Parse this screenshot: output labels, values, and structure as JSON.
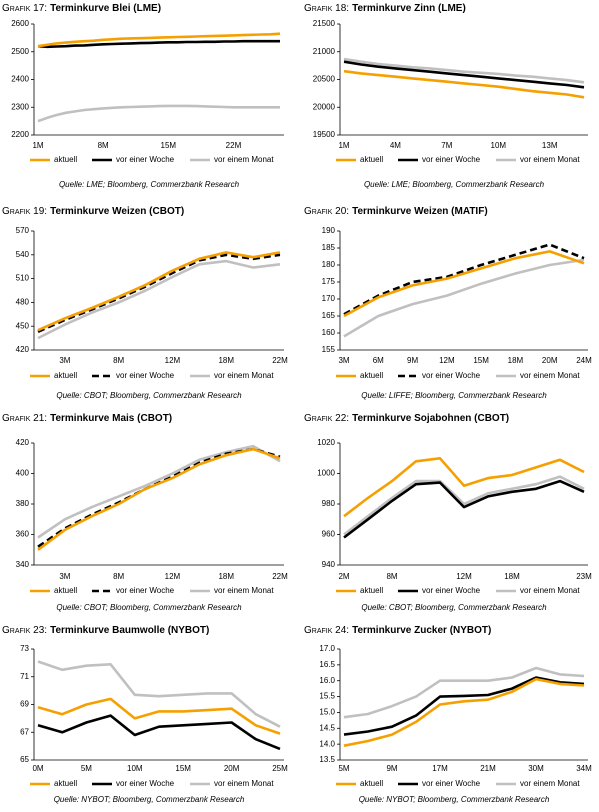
{
  "chart_data": [
    {
      "type": "line",
      "label": "Grafik 17:",
      "title": "Terminkurve Blei (LME)",
      "categories": [
        "1M",
        null,
        null,
        null,
        null,
        null,
        null,
        "8M",
        null,
        null,
        null,
        null,
        null,
        null,
        "15M",
        null,
        null,
        null,
        null,
        null,
        null,
        "22M",
        null,
        null,
        null,
        null,
        null
      ],
      "series": [
        {
          "name": "aktuell",
          "color": "#f5a000",
          "values": [
            2520,
            2525,
            2530,
            2533,
            2536,
            2538,
            2540,
            2543,
            2545,
            2547,
            2548,
            2549,
            2550,
            2551,
            2552,
            2553,
            2554,
            2555,
            2556,
            2557,
            2558,
            2559,
            2560,
            2561,
            2562,
            2563,
            2565
          ]
        },
        {
          "name": "vor einer Woche",
          "color": "#000000",
          "values": [
            2520,
            2518,
            2519,
            2520,
            2522,
            2523,
            2525,
            2527,
            2528,
            2529,
            2530,
            2531,
            2532,
            2533,
            2534,
            2534,
            2535,
            2535,
            2536,
            2536,
            2537,
            2537,
            2538,
            2538,
            2538,
            2538,
            2538
          ]
        },
        {
          "name": "vor einem Monat",
          "color": "#c0c0c0",
          "values": [
            2250,
            2262,
            2272,
            2280,
            2285,
            2290,
            2293,
            2296,
            2298,
            2300,
            2301,
            2302,
            2303,
            2304,
            2305,
            2305,
            2305,
            2304,
            2303,
            2302,
            2301,
            2300,
            2300,
            2300,
            2300,
            2300,
            2300
          ]
        }
      ],
      "ylim": [
        2200,
        2600
      ],
      "yticks": [
        2200,
        2300,
        2400,
        2500,
        2600
      ],
      "source": "Quelle: LME; Bloomberg, Commerzbank Research"
    },
    {
      "type": "line",
      "label": "Grafik 18:",
      "title": "Terminkurve Zinn (LME)",
      "categories": [
        "1M",
        null,
        null,
        "4M",
        null,
        null,
        "7M",
        null,
        null,
        "10M",
        null,
        null,
        "13M",
        null,
        null
      ],
      "series": [
        {
          "name": "aktuell",
          "color": "#f5a000",
          "values": [
            20650,
            20610,
            20580,
            20550,
            20520,
            20490,
            20460,
            20430,
            20400,
            20370,
            20330,
            20290,
            20260,
            20230,
            20180
          ]
        },
        {
          "name": "vor einer Woche",
          "color": "#000000",
          "values": [
            20820,
            20770,
            20730,
            20700,
            20670,
            20640,
            20610,
            20580,
            20550,
            20520,
            20490,
            20460,
            20430,
            20400,
            20360
          ]
        },
        {
          "name": "vor einem Monat",
          "color": "#c0c0c0",
          "values": [
            20870,
            20820,
            20780,
            20750,
            20720,
            20700,
            20670,
            20640,
            20620,
            20600,
            20570,
            20550,
            20520,
            20490,
            20450
          ]
        }
      ],
      "ylim": [
        19500,
        21500
      ],
      "yticks": [
        19500,
        20000,
        20500,
        21000,
        21500
      ],
      "source": "Quelle: LME; Bloomberg, Commerzbank Research"
    },
    {
      "type": "line",
      "label": "Grafik 19:",
      "title": "Terminkurve Weizen (CBOT)",
      "categories": [
        null,
        "3M",
        null,
        "8M",
        null,
        "12M",
        null,
        "18M",
        null,
        "22M"
      ],
      "series": [
        {
          "name": "aktuell",
          "color": "#f5a000",
          "values": [
            445,
            460,
            473,
            487,
            502,
            520,
            535,
            543,
            537,
            543
          ]
        },
        {
          "name": "vor einer Woche",
          "color": "#000000",
          "dashed": true,
          "values": [
            443,
            458,
            471,
            485,
            500,
            517,
            533,
            540,
            535,
            540
          ]
        },
        {
          "name": "vor einem Monat",
          "color": "#c0c0c0",
          "values": [
            435,
            452,
            467,
            480,
            495,
            512,
            528,
            532,
            524,
            528
          ]
        }
      ],
      "ylim": [
        420,
        570
      ],
      "yticks": [
        420,
        450,
        480,
        510,
        540,
        570
      ],
      "source": "Quelle: CBOT; Bloomberg, Commerzbank Research"
    },
    {
      "type": "line",
      "label": "Grafik 20:",
      "title": "Terminkurve Weizen (MATIF)",
      "categories": [
        "3M",
        "6M",
        "9M",
        "12M",
        "15M",
        "18M",
        "20M",
        "24M"
      ],
      "series": [
        {
          "name": "aktuell",
          "color": "#f5a000",
          "values": [
            165,
            170.5,
            174,
            176,
            179,
            182,
            184,
            180.5
          ]
        },
        {
          "name": "vor einer Woche",
          "color": "#000000",
          "dashed": true,
          "values": [
            165.5,
            171,
            175,
            176.5,
            180,
            183,
            186,
            182
          ]
        },
        {
          "name": "vor einem Monat",
          "color": "#c0c0c0",
          "values": [
            159,
            165,
            168.5,
            171,
            174.5,
            177.5,
            180,
            181.5
          ]
        }
      ],
      "ylim": [
        155,
        190
      ],
      "yticks": [
        155,
        160,
        165,
        170,
        175,
        180,
        185,
        190
      ],
      "source": "Quelle: LIFFE; Bloomberg, Commerzbank Research"
    },
    {
      "type": "line",
      "label": "Grafik 21:",
      "title": "Terminkurve Mais (CBOT)",
      "categories": [
        null,
        "3M",
        null,
        "8M",
        null,
        "12M",
        null,
        "18M",
        null,
        "22M"
      ],
      "series": [
        {
          "name": "aktuell",
          "color": "#f5a000",
          "values": [
            350,
            363,
            372,
            380,
            390,
            397,
            406,
            412,
            416,
            410
          ]
        },
        {
          "name": "vor einer Woche",
          "color": "#000000",
          "dashed": true,
          "values": [
            352,
            364,
            373,
            381,
            390,
            398,
            407,
            413,
            416,
            411
          ]
        },
        {
          "name": "vor einem Monat",
          "color": "#c0c0c0",
          "values": [
            358,
            370,
            378,
            385,
            392,
            400,
            409,
            414,
            418,
            408
          ]
        }
      ],
      "ylim": [
        340,
        420
      ],
      "yticks": [
        340,
        360,
        380,
        400,
        420
      ],
      "source": "Quelle: CBOT; Bloomberg, Commerzbank Research"
    },
    {
      "type": "line",
      "label": "Grafik 22:",
      "title": "Terminkurve Sojabohnen (CBOT)",
      "categories": [
        "2M",
        null,
        "8M",
        null,
        null,
        "12M",
        null,
        "18M",
        null,
        null,
        "23M"
      ],
      "series": [
        {
          "name": "aktuell",
          "color": "#f5a000",
          "values": [
            972,
            984,
            995,
            1008,
            1010,
            992,
            997,
            999,
            1004,
            1009,
            1001
          ]
        },
        {
          "name": "vor einer Woche",
          "color": "#000000",
          "values": [
            958,
            970,
            982,
            993,
            994,
            978,
            985,
            988,
            990,
            995,
            988
          ]
        },
        {
          "name": "vor einem Monat",
          "color": "#c0c0c0",
          "values": [
            960,
            972,
            984,
            995,
            995,
            980,
            987,
            990,
            993,
            998,
            990
          ]
        }
      ],
      "ylim": [
        940,
        1020
      ],
      "yticks": [
        940,
        960,
        980,
        1000,
        1020
      ],
      "source": "Quelle: CBOT; Bloomberg, Commerzbank Research"
    },
    {
      "type": "line",
      "label": "Grafik 23:",
      "title": "Terminkurve Baumwolle (NYBOT)",
      "categories": [
        "0M",
        null,
        "5M",
        null,
        "10M",
        null,
        "15M",
        null,
        "20M",
        null,
        "25M"
      ],
      "series": [
        {
          "name": "aktuell",
          "color": "#f5a000",
          "values": [
            68.8,
            68.3,
            69.0,
            69.4,
            68.0,
            68.5,
            68.5,
            68.6,
            68.7,
            67.5,
            66.9
          ]
        },
        {
          "name": "vor einer Woche",
          "color": "#000000",
          "values": [
            67.5,
            67.0,
            67.7,
            68.2,
            66.8,
            67.4,
            67.5,
            67.6,
            67.7,
            66.5,
            65.8
          ]
        },
        {
          "name": "vor einem Monat",
          "color": "#c0c0c0",
          "values": [
            72.1,
            71.5,
            71.8,
            71.9,
            69.7,
            69.6,
            69.7,
            69.8,
            69.8,
            68.3,
            67.4
          ]
        }
      ],
      "ylim": [
        65,
        73
      ],
      "yticks": [
        65,
        67,
        69,
        71,
        73
      ],
      "source": "Quelle: NYBOT; Bloomberg, Commerzbank Research"
    },
    {
      "type": "line",
      "label": "Grafik 24:",
      "title": "Terminkurve Zucker (NYBOT)",
      "categories": [
        "5M",
        null,
        "9M",
        null,
        "17M",
        null,
        "21M",
        null,
        "30M",
        null,
        "34M"
      ],
      "series": [
        {
          "name": "aktuell",
          "color": "#f5a000",
          "values": [
            13.95,
            14.1,
            14.3,
            14.7,
            15.25,
            15.35,
            15.4,
            15.65,
            16.05,
            15.9,
            15.85
          ]
        },
        {
          "name": "vor einer Woche",
          "color": "#000000",
          "values": [
            14.3,
            14.4,
            14.55,
            14.9,
            15.5,
            15.52,
            15.55,
            15.75,
            16.1,
            15.95,
            15.9
          ]
        },
        {
          "name": "vor einem Monat",
          "color": "#c0c0c0",
          "values": [
            14.85,
            14.95,
            15.2,
            15.5,
            16.0,
            16.0,
            16.0,
            16.1,
            16.4,
            16.2,
            16.15
          ]
        }
      ],
      "ylim": [
        13.5,
        17
      ],
      "yticks": [
        13.5,
        {
          "value": 14,
          "label": "14.0"
        },
        14.5,
        {
          "value": 15,
          "label": "15.0"
        },
        15.5,
        {
          "value": 16,
          "label": "16.0"
        },
        16.5,
        {
          "value": 17,
          "label": "17.0"
        }
      ],
      "source": "Quelle: NYBOT; Bloomberg, Commerzbank Research"
    }
  ]
}
